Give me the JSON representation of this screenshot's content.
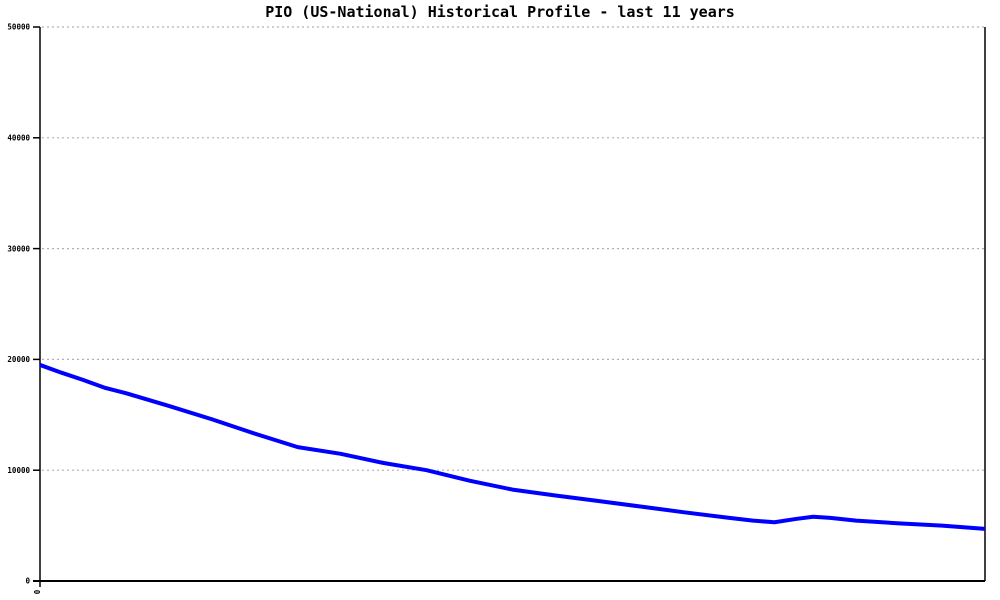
{
  "colors": {
    "background": "#ffffff",
    "line": "#0000ff",
    "grid": "#b0b0b0",
    "axis": "#000000",
    "text": "#000000"
  },
  "chart_data": {
    "type": "line",
    "title": "PIO (US-National) Historical Profile - last 11 years",
    "xlabel": "",
    "ylabel": "",
    "xlim": [
      0,
      11
    ],
    "ylim": [
      0,
      50000
    ],
    "grid": "horizontal dotted gridlines at each 10000",
    "legend": "none",
    "y_ticks": [
      0,
      10000,
      20000,
      30000,
      40000,
      50000
    ],
    "y_tick_labels": [
      "0",
      "10000",
      "20000",
      "30000",
      "40000",
      "50000"
    ],
    "x_ticks": [
      0
    ],
    "x_tick_labels": [
      "0"
    ],
    "x_tick_label_rotation_deg": -90,
    "series": [
      {
        "name": "PIO (US-National)",
        "color": "#0000ff",
        "x": [
          0,
          0.25,
          0.5,
          0.75,
          1,
          1.5,
          2,
          2.5,
          3,
          3.5,
          4,
          4.5,
          5,
          5.5,
          6,
          6.5,
          7,
          7.5,
          8,
          8.3,
          8.55,
          8.8,
          9,
          9.2,
          9.5,
          10,
          10.5,
          11
        ],
        "values": [
          19500,
          18800,
          18150,
          17450,
          16950,
          15800,
          14600,
          13300,
          12080,
          11480,
          10650,
          10000,
          9050,
          8250,
          7720,
          7220,
          6710,
          6200,
          5720,
          5450,
          5300,
          5600,
          5800,
          5700,
          5450,
          5200,
          5000,
          4700
        ]
      }
    ]
  }
}
